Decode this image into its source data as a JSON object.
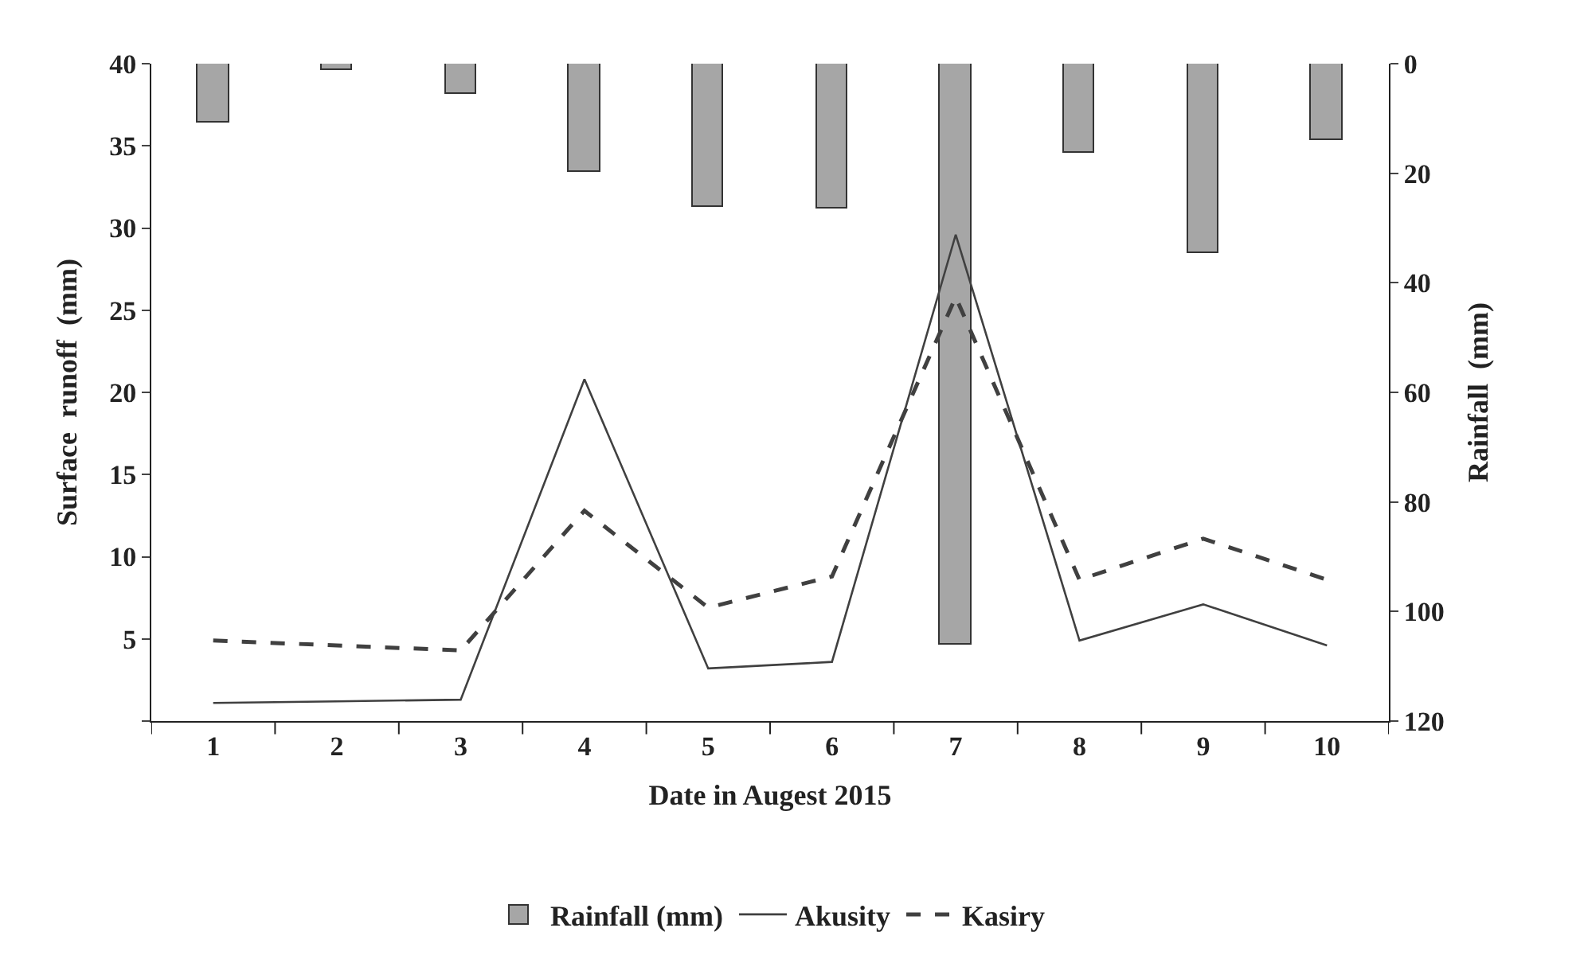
{
  "chart_data": {
    "type": "line",
    "xlabel": "Date in Augest 2015",
    "ylabel": "Surface  runoff  (mm)",
    "y2label": "Rainfall  (mm)",
    "categories": [
      "1",
      "2",
      "3",
      "4",
      "5",
      "6",
      "7",
      "8",
      "9",
      "10"
    ],
    "series": [
      {
        "name": "Rainfall (mm)",
        "type": "bar",
        "axis": "y2",
        "color": "#a6a6a6",
        "values": [
          10.7,
          1.3,
          5.4,
          19.9,
          26.2,
          26.5,
          106,
          16.4,
          34.7,
          13.9
        ]
      },
      {
        "name": "Akusity",
        "line_style": "solid",
        "color": "#404040",
        "values": [
          1.1,
          1.2,
          1.3,
          20.8,
          3.2,
          3.6,
          29.6,
          4.9,
          7.1,
          4.6
        ]
      },
      {
        "name": "Kasiry",
        "line_style": "dashed",
        "color": "#404040",
        "values": [
          4.9,
          4.6,
          4.3,
          12.8,
          6.9,
          8.8,
          25.8,
          8.6,
          11.1,
          8.6
        ]
      }
    ],
    "ylim": [
      0,
      40
    ],
    "yticks": [
      {
        "value": 0,
        "label": null
      },
      5,
      10,
      15,
      20,
      25,
      30,
      35,
      40
    ],
    "y2lim": [
      120,
      0
    ],
    "y2ticks": [
      0,
      20,
      40,
      60,
      80,
      100,
      120
    ],
    "legend": "bottom",
    "marker": "none"
  }
}
